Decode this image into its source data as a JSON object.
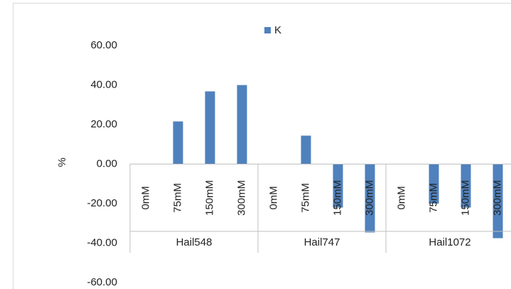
{
  "chart_data": {
    "type": "bar",
    "ylabel": "%",
    "groups": [
      "Hail548",
      "Hail747",
      "Hail1072"
    ],
    "categories": [
      "0mM",
      "75mM",
      "150mM",
      "300mM",
      "0mM",
      "75mM",
      "150mM",
      "300mM",
      "0mM",
      "75mM",
      "150mM",
      "300mM"
    ],
    "series": [
      {
        "name": "K",
        "color": "#4f81bd",
        "values": [
          0,
          21.6,
          36.8,
          40,
          0,
          14.4,
          -22,
          -34.6,
          0,
          -20,
          -22,
          -37.5
        ]
      }
    ],
    "ylim": [
      -60,
      60
    ],
    "yticks": [
      {
        "value": -60,
        "label": "-60.00"
      },
      {
        "value": -40,
        "label": "-40.00"
      },
      {
        "value": -20,
        "label": "-20.00"
      },
      {
        "value": 0,
        "label": "0.00"
      },
      {
        "value": 20,
        "label": "20.00"
      },
      {
        "value": 40,
        "label": "40.00"
      },
      {
        "value": 60,
        "label": "60.00"
      }
    ],
    "legend": "top"
  }
}
